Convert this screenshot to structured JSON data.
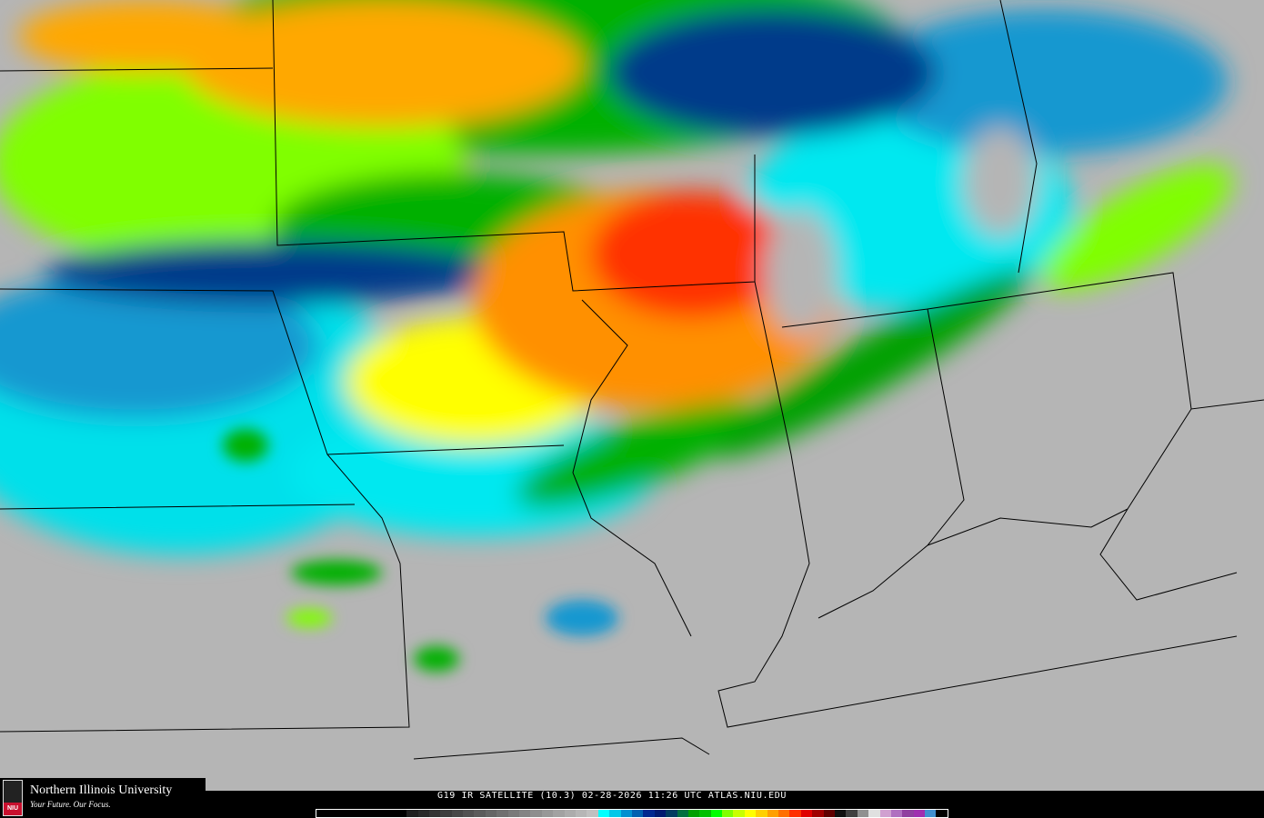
{
  "caption": "G19 IR SATELLITE (10.3) 02-28-2026 11:26 UTC ATLAS.NIU.EDU",
  "logo": {
    "name": "Northern Illinois University",
    "tagline": "Your Future. Our Focus.",
    "seal_text": "NIU"
  },
  "colors": {
    "clear": "#b5b5b5",
    "cyan": "#00e8f0",
    "light_blue": "#1898d0",
    "dark_blue": "#003a8a",
    "green": "#00b000",
    "lime": "#80ff00",
    "yellow": "#ffff00",
    "orange": "#ffa800",
    "red": "#ff3000"
  },
  "colorbar": [
    "#000000",
    "#000000",
    "#000000",
    "#000000",
    "#000000",
    "#000000",
    "#000000",
    "#000000",
    "#202020",
    "#2a2a2a",
    "#343434",
    "#3e3e3e",
    "#484848",
    "#525252",
    "#5c5c5c",
    "#666666",
    "#707070",
    "#7a7a7a",
    "#848484",
    "#8e8e8e",
    "#989898",
    "#a2a2a2",
    "#acacac",
    "#b6b6b6",
    "#c0c0c0",
    "#00ffff",
    "#00c8e8",
    "#0090d0",
    "#0060b0",
    "#002890",
    "#001a70",
    "#003c60",
    "#007040",
    "#00a000",
    "#00c000",
    "#00ff00",
    "#80ff00",
    "#c8ff00",
    "#ffff00",
    "#ffd000",
    "#ffa000",
    "#ff7000",
    "#ff3000",
    "#e00000",
    "#a00000",
    "#600000",
    "#101010",
    "#404040",
    "#909090",
    "#e0e0e0",
    "#d0a0d0",
    "#b070c0",
    "#9040a0",
    "#a030b0",
    "#4090d0",
    "#000000"
  ]
}
